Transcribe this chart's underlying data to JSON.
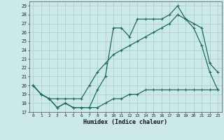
{
  "xlabel": "Humidex (Indice chaleur)",
  "bg_color": "#cce9e9",
  "grid_color": "#bbdddd",
  "line_color": "#1a6b5a",
  "xlim": [
    -0.5,
    23.5
  ],
  "ylim": [
    17,
    29.5
  ],
  "yticks": [
    17,
    18,
    19,
    20,
    21,
    22,
    23,
    24,
    25,
    26,
    27,
    28,
    29
  ],
  "xticks": [
    0,
    1,
    2,
    3,
    4,
    5,
    6,
    7,
    8,
    9,
    10,
    11,
    12,
    13,
    14,
    15,
    16,
    17,
    18,
    19,
    20,
    21,
    22,
    23
  ],
  "line1_x": [
    0,
    1,
    2,
    3,
    4,
    5,
    6,
    7,
    8,
    9,
    10,
    11,
    12,
    13,
    14,
    15,
    16,
    17,
    18,
    19,
    20,
    21,
    22,
    23
  ],
  "line1_y": [
    20,
    19,
    18.5,
    17.5,
    18,
    17.5,
    17.5,
    17.5,
    19.5,
    21,
    26.5,
    26.5,
    25.5,
    27.5,
    27.5,
    27.5,
    27.5,
    28,
    29,
    27.5,
    26.5,
    24.5,
    21.5,
    19.5
  ],
  "line2_x": [
    0,
    1,
    2,
    3,
    4,
    5,
    6,
    7,
    8,
    9,
    10,
    11,
    12,
    13,
    14,
    15,
    16,
    17,
    18,
    19,
    20,
    21,
    22,
    23
  ],
  "line2_y": [
    20,
    19,
    18.5,
    18.5,
    18.5,
    18.5,
    18.5,
    20,
    21.5,
    22.5,
    23.5,
    24,
    24.5,
    25,
    25.5,
    26,
    26.5,
    27,
    28,
    27.5,
    27,
    26.5,
    22.5,
    21.5
  ],
  "line3_x": [
    0,
    1,
    2,
    3,
    4,
    5,
    6,
    7,
    8,
    9,
    10,
    11,
    12,
    13,
    14,
    15,
    16,
    17,
    18,
    19,
    20,
    21,
    22,
    23
  ],
  "line3_y": [
    20,
    19,
    18.5,
    17.5,
    18,
    17.5,
    17.5,
    17.5,
    17.5,
    18,
    18.5,
    18.5,
    19,
    19,
    19.5,
    19.5,
    19.5,
    19.5,
    19.5,
    19.5,
    19.5,
    19.5,
    19.5,
    19.5
  ]
}
